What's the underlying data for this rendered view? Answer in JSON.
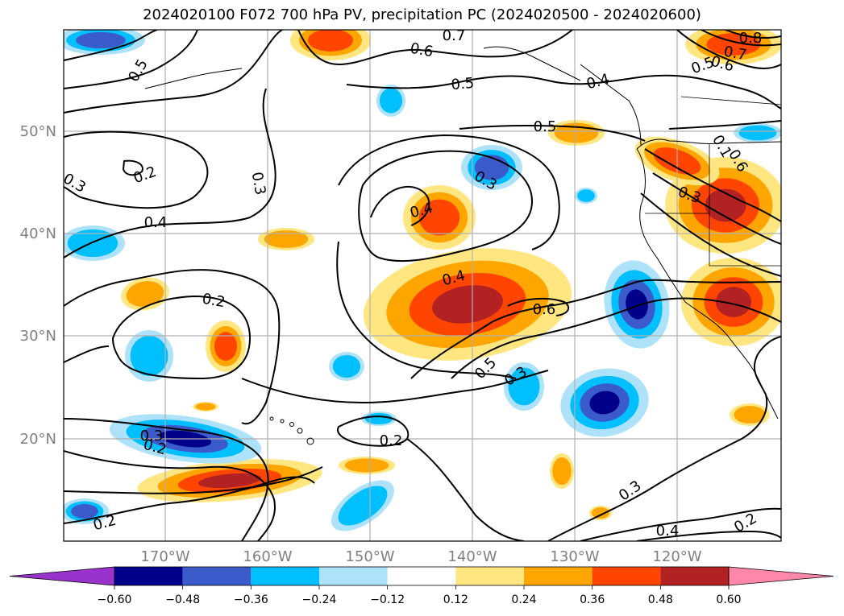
{
  "title": "2024020100 F072 700 hPa PV, precipitation PC (2024020500 - 2024020600)",
  "map": {
    "lat_labels": [
      "50°N",
      "40°N",
      "30°N",
      "20°N"
    ],
    "lon_labels": [
      "170°W",
      "160°W",
      "150°W",
      "140°W",
      "130°W",
      "120°W"
    ],
    "grid": true,
    "contour_labels": [
      "0.7",
      "0.6",
      "0.5",
      "0.5",
      "0.4",
      "0.5",
      "0.8",
      "0.7",
      "0.6",
      "0.5",
      "0.3",
      "0.2",
      "0.4",
      "0.3",
      "0.2",
      "0.3",
      "0.4",
      "0.6",
      "0.5",
      "0.3",
      "0.2",
      "0.2",
      "0.3",
      "0.4",
      "0.2",
      "0.2",
      "0.3",
      "0.6",
      "0.1",
      "0.3",
      "0.4"
    ]
  },
  "colorbar": {
    "ticks": [
      "−0.60",
      "−0.48",
      "−0.36",
      "−0.24",
      "−0.12",
      "0.12",
      "0.24",
      "0.36",
      "0.48",
      "0.60"
    ],
    "colors": [
      "#9933cc",
      "#00008b",
      "#3a5bc9",
      "#00bfff",
      "#aee2fa",
      "#ffffff",
      "#ffe680",
      "#ffa500",
      "#ff4500",
      "#b22222",
      "#ff88aa"
    ]
  },
  "legend_colors": {
    "neg_dark": "#00008b",
    "neg_mid": "#3a5bc9",
    "neg_light": "#00bfff",
    "neg_pale": "#aee2fa",
    "pos_pale": "#ffe680",
    "pos_light": "#ffa500",
    "pos_mid": "#ff4500",
    "pos_dark": "#b22222"
  }
}
